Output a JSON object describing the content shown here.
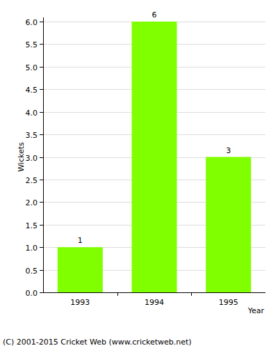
{
  "chart_data": {
    "type": "bar",
    "categories": [
      "1993",
      "1994",
      "1995"
    ],
    "values": [
      1,
      6,
      3
    ],
    "color": "#80ff00",
    "ylim": [
      0,
      6
    ],
    "yticks": [
      {
        "value": 0,
        "label": "0.0"
      },
      {
        "value": 0.5,
        "label": "0.5"
      },
      {
        "value": 1,
        "label": "1.0"
      },
      {
        "value": 1.5,
        "label": "1.5"
      },
      {
        "value": 2,
        "label": "2.0"
      },
      {
        "value": 2.5,
        "label": "2.5"
      },
      {
        "value": 3,
        "label": "3.0"
      },
      {
        "value": 3.5,
        "label": "3.5"
      },
      {
        "value": 4,
        "label": "4.0"
      },
      {
        "value": 4.5,
        "label": "4.5"
      },
      {
        "value": 5,
        "label": "5.0"
      },
      {
        "value": 5.5,
        "label": "5.5"
      },
      {
        "value": 6,
        "label": "6.0"
      }
    ],
    "grid": true,
    "data_labels": true,
    "x_label": "Year",
    "y_label": "Wickets",
    "annotations": [
      "(C) 2001-2015 Cricket Web (www.cricketweb.net)"
    ]
  }
}
